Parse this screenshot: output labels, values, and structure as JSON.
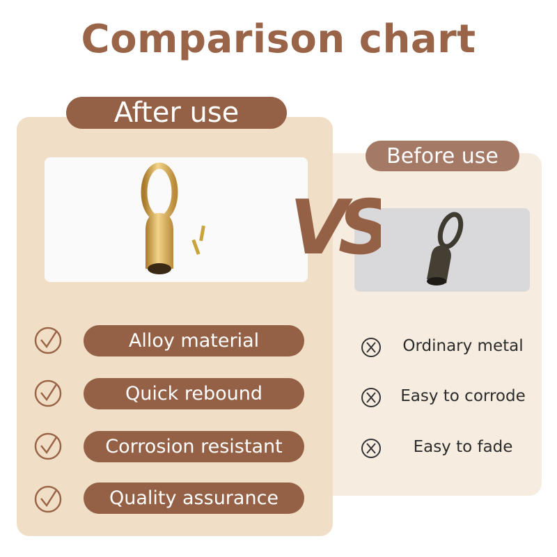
{
  "title": "Comparison chart",
  "after": {
    "label": "After use",
    "image": "gold-alloy-swivel-clasp-with-pins",
    "features": [
      "Alloy material",
      "Quick rebound",
      "Corrosion resistant",
      "Quality assurance"
    ],
    "icon": "check-circle-icon"
  },
  "vs": "VS",
  "before": {
    "label": "Before use",
    "image": "dark-bronze-ordinary-metal-clasp",
    "drawbacks": [
      "Ordinary metal",
      "Easy to corrode",
      "Easy to fade"
    ],
    "icon": "x-circle-icon"
  },
  "colors": {
    "accent": "#956146",
    "title": "#9a6448",
    "left_panel": "#f0dfc6",
    "right_panel": "#f6ece0",
    "right_pill": "#a47a67"
  }
}
